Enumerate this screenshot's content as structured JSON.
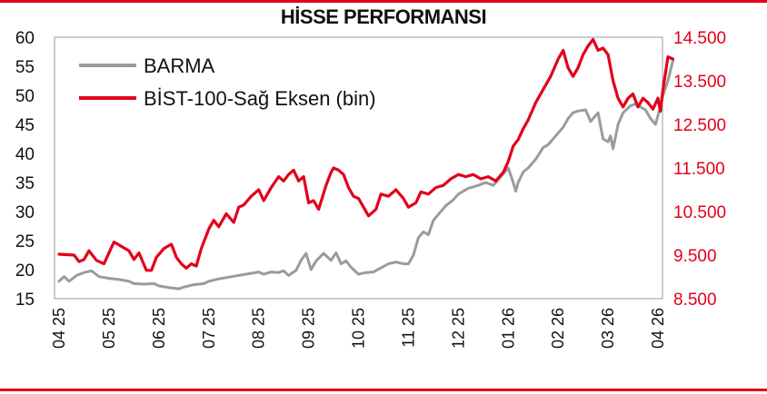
{
  "title": "HİSSE PERFORMANSI",
  "chart_data": {
    "type": "line",
    "title": "HİSSE PERFORMANSI",
    "legend_position": "top-left",
    "grid": false,
    "x_labels": [
      "04 25",
      "05 25",
      "06 25",
      "07 25",
      "08 25",
      "09 25",
      "10 25",
      "11 25",
      "12 25",
      "01 26",
      "02 26",
      "03 26",
      "04 26"
    ],
    "y_left": {
      "ticks": [
        "15",
        "20",
        "25",
        "30",
        "35",
        "40",
        "45",
        "50",
        "55",
        "60"
      ],
      "range": [
        15,
        60
      ]
    },
    "y_right": {
      "ticks": [
        "8.500",
        "9.500",
        "10.500",
        "11.500",
        "12.500",
        "13.500",
        "14.500"
      ],
      "range": [
        8500,
        14500
      ]
    },
    "series": [
      {
        "name": "BARMA",
        "axis": "left",
        "color": "#9b9b9b",
        "points": [
          [
            0.0,
            18.0
          ],
          [
            0.1,
            18.8
          ],
          [
            0.2,
            18.0
          ],
          [
            0.35,
            19.0
          ],
          [
            0.5,
            19.5
          ],
          [
            0.65,
            19.8
          ],
          [
            0.8,
            18.8
          ],
          [
            1.0,
            18.5
          ],
          [
            1.2,
            18.3
          ],
          [
            1.4,
            18.0
          ],
          [
            1.5,
            17.6
          ],
          [
            1.7,
            17.5
          ],
          [
            1.9,
            17.6
          ],
          [
            2.0,
            17.2
          ],
          [
            2.2,
            16.9
          ],
          [
            2.4,
            16.7
          ],
          [
            2.5,
            17.0
          ],
          [
            2.7,
            17.4
          ],
          [
            2.9,
            17.6
          ],
          [
            3.0,
            18.0
          ],
          [
            3.2,
            18.4
          ],
          [
            3.4,
            18.7
          ],
          [
            3.6,
            19.0
          ],
          [
            3.8,
            19.3
          ],
          [
            4.0,
            19.6
          ],
          [
            4.1,
            19.2
          ],
          [
            4.25,
            19.6
          ],
          [
            4.4,
            19.5
          ],
          [
            4.5,
            19.8
          ],
          [
            4.6,
            19.0
          ],
          [
            4.75,
            19.9
          ],
          [
            4.85,
            21.6
          ],
          [
            4.95,
            22.8
          ],
          [
            5.05,
            20.0
          ],
          [
            5.15,
            21.5
          ],
          [
            5.3,
            22.8
          ],
          [
            5.45,
            21.6
          ],
          [
            5.55,
            22.9
          ],
          [
            5.65,
            21.0
          ],
          [
            5.75,
            21.5
          ],
          [
            5.85,
            20.4
          ],
          [
            6.0,
            19.2
          ],
          [
            6.15,
            19.5
          ],
          [
            6.3,
            19.6
          ],
          [
            6.45,
            20.3
          ],
          [
            6.6,
            21.0
          ],
          [
            6.75,
            21.3
          ],
          [
            6.9,
            21.0
          ],
          [
            7.0,
            21.0
          ],
          [
            7.1,
            22.5
          ],
          [
            7.2,
            25.5
          ],
          [
            7.3,
            26.5
          ],
          [
            7.4,
            26.0
          ],
          [
            7.5,
            28.5
          ],
          [
            7.6,
            29.5
          ],
          [
            7.75,
            31.0
          ],
          [
            7.9,
            32.0
          ],
          [
            8.0,
            33.0
          ],
          [
            8.2,
            34.0
          ],
          [
            8.4,
            34.5
          ],
          [
            8.55,
            35.0
          ],
          [
            8.7,
            34.5
          ],
          [
            8.8,
            35.5
          ],
          [
            8.9,
            36.5
          ],
          [
            9.0,
            37.5
          ],
          [
            9.1,
            35.0
          ],
          [
            9.15,
            33.5
          ],
          [
            9.2,
            35.0
          ],
          [
            9.3,
            36.8
          ],
          [
            9.4,
            37.5
          ],
          [
            9.55,
            39.0
          ],
          [
            9.7,
            41.0
          ],
          [
            9.8,
            41.5
          ],
          [
            9.95,
            43.0
          ],
          [
            10.1,
            44.5
          ],
          [
            10.2,
            46.0
          ],
          [
            10.3,
            47.0
          ],
          [
            10.4,
            47.3
          ],
          [
            10.55,
            47.5
          ],
          [
            10.65,
            45.5
          ],
          [
            10.8,
            47.0
          ],
          [
            10.9,
            42.5
          ],
          [
            11.0,
            42.0
          ],
          [
            11.05,
            43.0
          ],
          [
            11.1,
            40.8
          ],
          [
            11.2,
            45.0
          ],
          [
            11.3,
            47.0
          ],
          [
            11.45,
            48.2
          ],
          [
            11.55,
            48.5
          ],
          [
            11.65,
            48.0
          ],
          [
            11.75,
            47.5
          ],
          [
            11.85,
            46.0
          ],
          [
            11.95,
            45.0
          ],
          [
            12.0,
            46.5
          ],
          [
            12.1,
            50.0
          ],
          [
            12.2,
            52.5
          ],
          [
            12.3,
            56.0
          ]
        ]
      },
      {
        "name": "BİST-100-Sağ Eksen (bin)",
        "axis": "right",
        "color": "#e3001b",
        "points": [
          [
            0.0,
            9520
          ],
          [
            0.3,
            9500
          ],
          [
            0.4,
            9350
          ],
          [
            0.5,
            9400
          ],
          [
            0.6,
            9600
          ],
          [
            0.75,
            9380
          ],
          [
            0.9,
            9300
          ],
          [
            1.0,
            9550
          ],
          [
            1.1,
            9800
          ],
          [
            1.25,
            9700
          ],
          [
            1.4,
            9600
          ],
          [
            1.5,
            9400
          ],
          [
            1.6,
            9550
          ],
          [
            1.75,
            9150
          ],
          [
            1.85,
            9150
          ],
          [
            1.95,
            9450
          ],
          [
            2.1,
            9650
          ],
          [
            2.25,
            9750
          ],
          [
            2.35,
            9450
          ],
          [
            2.45,
            9300
          ],
          [
            2.55,
            9200
          ],
          [
            2.65,
            9300
          ],
          [
            2.75,
            9250
          ],
          [
            2.85,
            9650
          ],
          [
            3.0,
            10100
          ],
          [
            3.1,
            10300
          ],
          [
            3.2,
            10150
          ],
          [
            3.35,
            10450
          ],
          [
            3.5,
            10250
          ],
          [
            3.6,
            10600
          ],
          [
            3.7,
            10650
          ],
          [
            3.85,
            10850
          ],
          [
            4.0,
            11000
          ],
          [
            4.1,
            10750
          ],
          [
            4.25,
            11050
          ],
          [
            4.4,
            11300
          ],
          [
            4.5,
            11200
          ],
          [
            4.6,
            11350
          ],
          [
            4.7,
            11450
          ],
          [
            4.8,
            11200
          ],
          [
            4.9,
            11300
          ],
          [
            5.0,
            10700
          ],
          [
            5.1,
            10750
          ],
          [
            5.2,
            10550
          ],
          [
            5.35,
            11100
          ],
          [
            5.45,
            11400
          ],
          [
            5.5,
            11500
          ],
          [
            5.6,
            11450
          ],
          [
            5.7,
            11350
          ],
          [
            5.8,
            11050
          ],
          [
            5.9,
            10850
          ],
          [
            6.0,
            10800
          ],
          [
            6.1,
            10600
          ],
          [
            6.2,
            10400
          ],
          [
            6.35,
            10550
          ],
          [
            6.45,
            10900
          ],
          [
            6.6,
            10850
          ],
          [
            6.75,
            11000
          ],
          [
            6.9,
            10800
          ],
          [
            7.0,
            10600
          ],
          [
            7.15,
            10700
          ],
          [
            7.25,
            10950
          ],
          [
            7.4,
            10900
          ],
          [
            7.55,
            11050
          ],
          [
            7.7,
            11100
          ],
          [
            7.85,
            11250
          ],
          [
            8.0,
            11350
          ],
          [
            8.15,
            11300
          ],
          [
            8.3,
            11350
          ],
          [
            8.45,
            11250
          ],
          [
            8.6,
            11300
          ],
          [
            8.75,
            11200
          ],
          [
            8.9,
            11400
          ],
          [
            9.0,
            11650
          ],
          [
            9.1,
            12000
          ],
          [
            9.2,
            12150
          ],
          [
            9.3,
            12400
          ],
          [
            9.4,
            12600
          ],
          [
            9.55,
            13000
          ],
          [
            9.7,
            13300
          ],
          [
            9.85,
            13600
          ],
          [
            10.0,
            14000
          ],
          [
            10.1,
            14200
          ],
          [
            10.2,
            13800
          ],
          [
            10.3,
            13600
          ],
          [
            10.4,
            13800
          ],
          [
            10.5,
            14100
          ],
          [
            10.6,
            14300
          ],
          [
            10.7,
            14450
          ],
          [
            10.8,
            14200
          ],
          [
            10.9,
            14250
          ],
          [
            11.0,
            14100
          ],
          [
            11.1,
            13500
          ],
          [
            11.2,
            13100
          ],
          [
            11.3,
            12900
          ],
          [
            11.4,
            13100
          ],
          [
            11.5,
            13200
          ],
          [
            11.6,
            12900
          ],
          [
            11.7,
            13100
          ],
          [
            11.8,
            13000
          ],
          [
            11.9,
            12850
          ],
          [
            12.0,
            13100
          ],
          [
            12.05,
            12800
          ],
          [
            12.1,
            13300
          ],
          [
            12.2,
            14050
          ],
          [
            12.3,
            14000
          ]
        ]
      }
    ]
  }
}
